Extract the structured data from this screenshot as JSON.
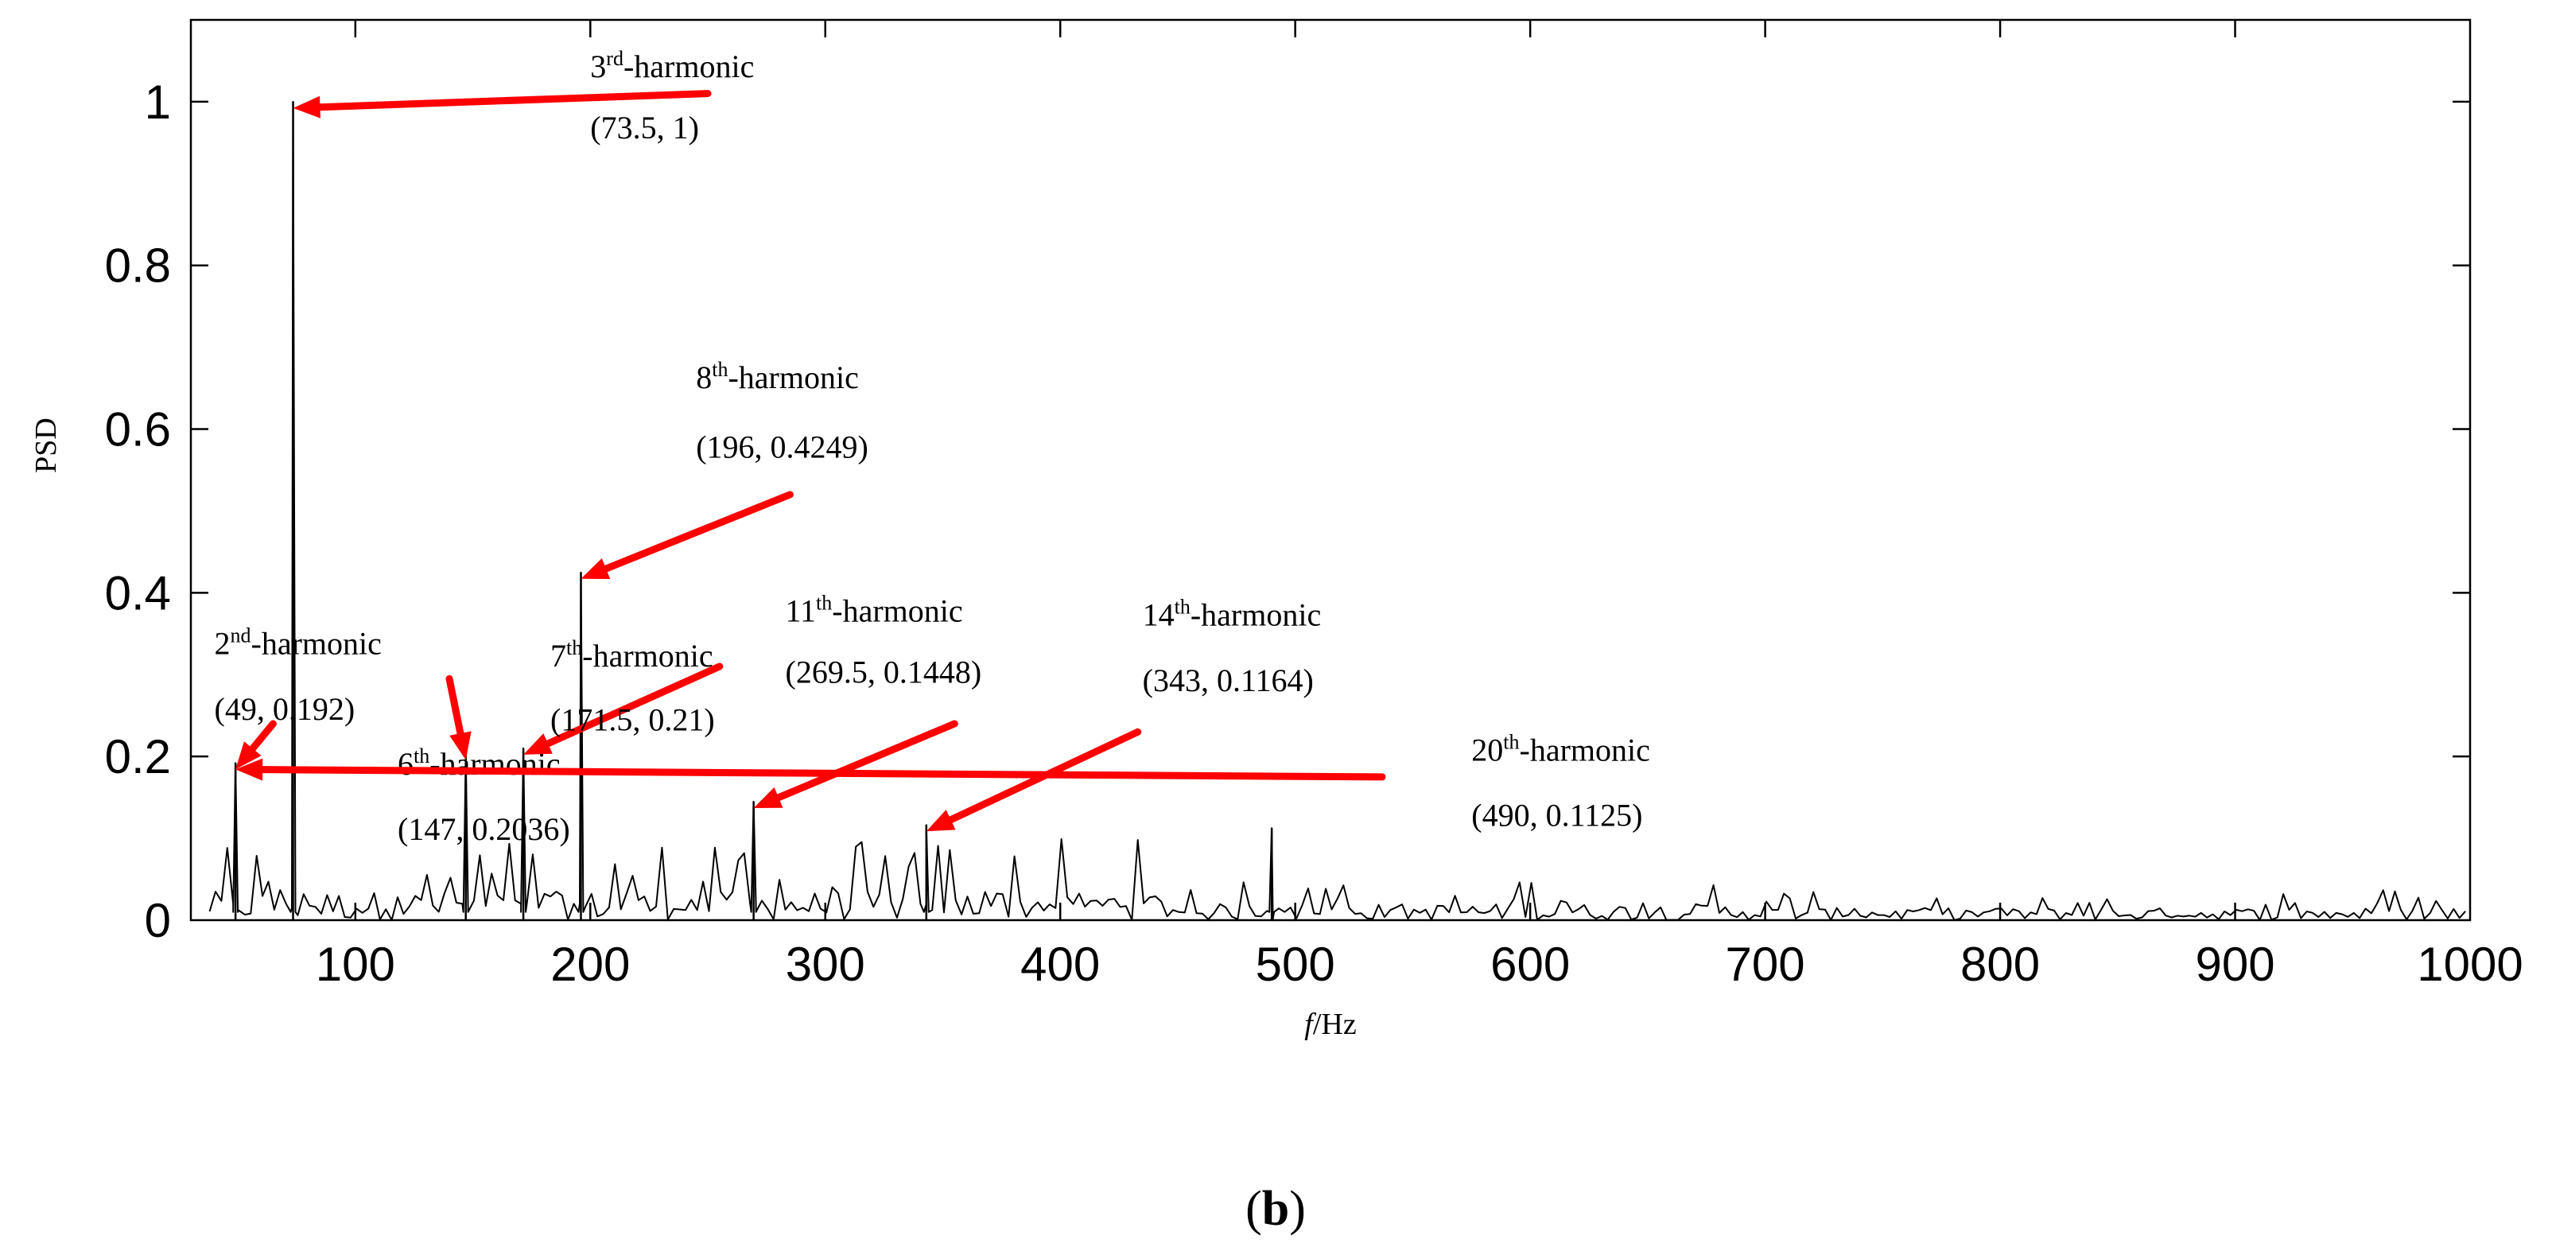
{
  "chart_data": {
    "type": "line",
    "title": "",
    "xlabel_italic": "f",
    "xlabel_unit": "/Hz",
    "ylabel": "PSD",
    "xlim": [
      30,
      1000
    ],
    "ylim": [
      0,
      1.1
    ],
    "xticks": [
      100,
      200,
      300,
      400,
      500,
      600,
      700,
      800,
      900,
      1000
    ],
    "yticks": [
      0,
      0.2,
      0.4,
      0.6,
      0.8,
      1
    ],
    "ytick_labels": [
      "0",
      "0.2",
      "0.4",
      "0.6",
      "0.8",
      "1"
    ],
    "grid": false,
    "line_color": "#000000",
    "annotation_color": "#ff0000",
    "panel_label": "b",
    "peaks": [
      {
        "x": 49,
        "y": 0.192
      },
      {
        "x": 73.5,
        "y": 1.0
      },
      {
        "x": 147,
        "y": 0.2036
      },
      {
        "x": 171.5,
        "y": 0.21
      },
      {
        "x": 196,
        "y": 0.4249
      },
      {
        "x": 269.5,
        "y": 0.1448
      },
      {
        "x": 343,
        "y": 0.1164
      },
      {
        "x": 490,
        "y": 0.1125
      }
    ],
    "annotations": [
      {
        "order": "2",
        "sup": "nd",
        "suffix": "-harmonic",
        "coords": "(49, 0.192)",
        "tx": 40,
        "ty": 0.325,
        "cy": 0.245,
        "ax": 65,
        "ay": 0.24
      },
      {
        "order": "3",
        "sup": "rd",
        "suffix": "-harmonic",
        "coords": "(73.5, 1)",
        "tx": 200,
        "ty": 1.03,
        "cy": 0.955,
        "ax": 250,
        "ay": 1.01
      },
      {
        "order": "6",
        "sup": "th",
        "suffix": "-harmonic",
        "coords": "(147, 0.2036)",
        "tx": 118,
        "ty": 0.178,
        "cy": 0.098,
        "ax": 140,
        "ay": 0.295
      },
      {
        "order": "7",
        "sup": "th",
        "suffix": "-harmonic",
        "coords": "(171.5, 0.21)",
        "tx": 183,
        "ty": 0.31,
        "cy": 0.232,
        "ax": 255,
        "ay": 0.31
      },
      {
        "order": "8",
        "sup": "th",
        "suffix": "-harmonic",
        "coords": "(196, 0.4249)",
        "tx": 245,
        "ty": 0.65,
        "cy": 0.565,
        "ax": 285,
        "ay": 0.52
      },
      {
        "order": "11",
        "sup": "th",
        "suffix": "-harmonic",
        "coords": "(269.5, 0.1448)",
        "tx": 283,
        "ty": 0.365,
        "cy": 0.29,
        "ax": 355,
        "ay": 0.24
      },
      {
        "order": "14",
        "sup": "th",
        "suffix": "-harmonic",
        "coords": "(343, 0.1164)",
        "tx": 435,
        "ty": 0.36,
        "cy": 0.28,
        "ax": 433,
        "ay": 0.23
      },
      {
        "order": "20",
        "sup": "th",
        "suffix": "-harmonic",
        "coords": "(490, 0.1125)",
        "tx": 575,
        "ty": 0.195,
        "cy": 0.115,
        "ax": 537,
        "ay": 0.175
      }
    ]
  }
}
